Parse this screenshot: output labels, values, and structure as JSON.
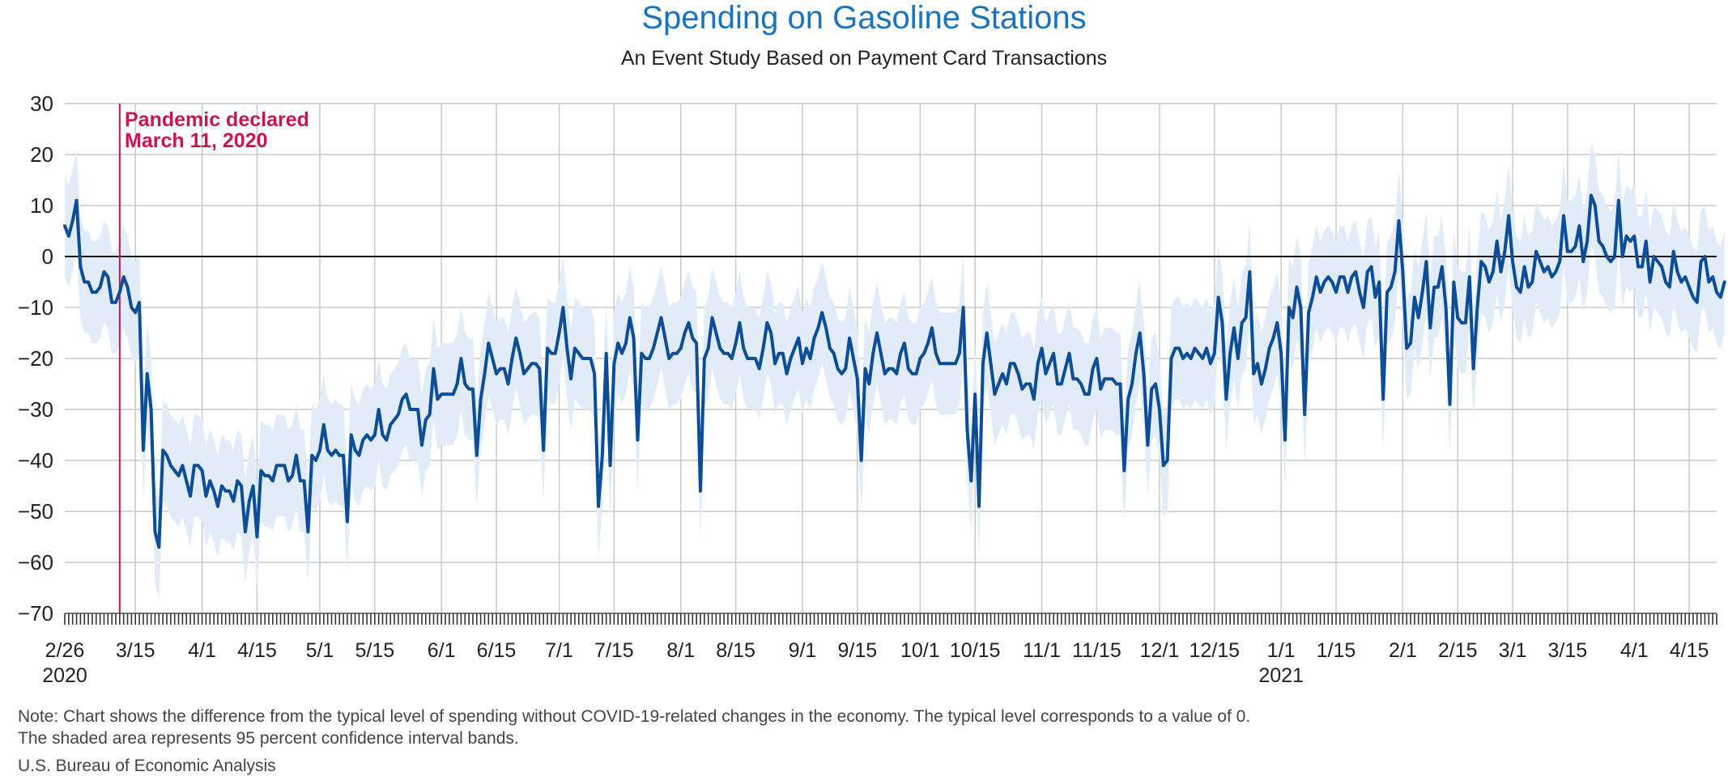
{
  "header": {
    "title": "Spending on Gasoline Stations",
    "subtitle": "An Event Study Based on Payment Card Transactions"
  },
  "annotation": {
    "line1": "Pandemic declared",
    "line2": "March 11, 2020",
    "date": "2020-03-11",
    "color": "#c8174f"
  },
  "footer": {
    "note_line1": "Note: Chart shows the difference from the typical level of spending without COVID-19-related changes in the economy. The typical level corresponds to a value of 0.",
    "note_line2": "The shaded area represents 95 percent confidence interval bands.",
    "source": "U.S. Bureau of Economic Analysis"
  },
  "colors": {
    "line": "#0b4d96",
    "band": "#e2ecf8",
    "grid": "#c9c9c9",
    "title": "#1a74bd"
  },
  "chart_data": {
    "type": "line",
    "title": "Spending on Gasoline Stations",
    "subtitle": "An Event Study Based on Payment Card Transactions",
    "xlabel": "",
    "ylabel": "",
    "ylim": [
      -70,
      30
    ],
    "yticks": [
      30,
      20,
      10,
      0,
      -10,
      -20,
      -30,
      -40,
      -50,
      -60,
      -70
    ],
    "xlim": [
      "2020-02-26",
      "2021-04-22"
    ],
    "xticks": [
      {
        "date": "2020-02-26",
        "label": "2/26",
        "sublabel": "2020"
      },
      {
        "date": "2020-03-15",
        "label": "3/15"
      },
      {
        "date": "2020-04-01",
        "label": "4/1"
      },
      {
        "date": "2020-04-15",
        "label": "4/15"
      },
      {
        "date": "2020-05-01",
        "label": "5/1"
      },
      {
        "date": "2020-05-15",
        "label": "5/15"
      },
      {
        "date": "2020-06-01",
        "label": "6/1"
      },
      {
        "date": "2020-06-15",
        "label": "6/15"
      },
      {
        "date": "2020-07-01",
        "label": "7/1"
      },
      {
        "date": "2020-07-15",
        "label": "7/15"
      },
      {
        "date": "2020-08-01",
        "label": "8/1"
      },
      {
        "date": "2020-08-15",
        "label": "8/15"
      },
      {
        "date": "2020-09-01",
        "label": "9/1"
      },
      {
        "date": "2020-09-15",
        "label": "9/15"
      },
      {
        "date": "2020-10-01",
        "label": "10/1"
      },
      {
        "date": "2020-10-15",
        "label": "10/15"
      },
      {
        "date": "2020-11-01",
        "label": "11/1"
      },
      {
        "date": "2020-11-15",
        "label": "11/15"
      },
      {
        "date": "2020-12-01",
        "label": "12/1"
      },
      {
        "date": "2020-12-15",
        "label": "12/15"
      },
      {
        "date": "2021-01-01",
        "label": "1/1",
        "sublabel": "2021"
      },
      {
        "date": "2021-01-15",
        "label": "1/15"
      },
      {
        "date": "2021-02-01",
        "label": "2/1"
      },
      {
        "date": "2021-02-15",
        "label": "2/15"
      },
      {
        "date": "2021-03-01",
        "label": "3/1"
      },
      {
        "date": "2021-03-15",
        "label": "3/15"
      },
      {
        "date": "2021-04-01",
        "label": "4/1"
      },
      {
        "date": "2021-04-15",
        "label": "4/15"
      }
    ],
    "grid": true,
    "band_halfwidth": 10,
    "series": [
      {
        "name": "",
        "start_date": "2020-02-26",
        "values": [
          6,
          4,
          7,
          11,
          -2,
          -5,
          -5,
          -7,
          -7,
          -6,
          -3,
          -4,
          -9,
          -9,
          -7,
          -4,
          -6,
          -10,
          -11,
          -9,
          -38,
          -23,
          -30,
          -54,
          -57,
          -38,
          -39,
          -41,
          -42,
          -43,
          -41,
          -44,
          -47,
          -41,
          -41,
          -42,
          -47,
          -44,
          -46,
          -49,
          -45,
          -46,
          -46,
          -48,
          -44,
          -45,
          -54,
          -48,
          -45,
          -55,
          -42,
          -43,
          -43,
          -44,
          -41,
          -41,
          -41,
          -44,
          -43,
          -39,
          -44,
          -44,
          -54,
          -39,
          -40,
          -38,
          -33,
          -38,
          -39,
          -38,
          -39,
          -39,
          -52,
          -35,
          -38,
          -39,
          -36,
          -35,
          -36,
          -35,
          -30,
          -35,
          -36,
          -33,
          -32,
          -31,
          -28,
          -27,
          -30,
          -30,
          -30,
          -37,
          -32,
          -31,
          -22,
          -28,
          -27,
          -27,
          -27,
          -27,
          -25,
          -20,
          -25,
          -26,
          -26,
          -39,
          -28,
          -23,
          -17,
          -20,
          -23,
          -22,
          -22,
          -25,
          -20,
          -16,
          -19,
          -23,
          -22,
          -21,
          -21,
          -22,
          -38,
          -18,
          -19,
          -19,
          -15,
          -10,
          -18,
          -24,
          -18,
          -19,
          -20,
          -20,
          -20,
          -23,
          -49,
          -39,
          -19,
          -41,
          -21,
          -17,
          -19,
          -17,
          -12,
          -16,
          -36,
          -19,
          -20,
          -20,
          -18,
          -15,
          -12,
          -16,
          -20,
          -19,
          -19,
          -18,
          -15,
          -13,
          -16,
          -17,
          -46,
          -20,
          -18,
          -12,
          -15,
          -18,
          -19,
          -19,
          -20,
          -17,
          -13,
          -18,
          -20,
          -20,
          -20,
          -22,
          -18,
          -13,
          -15,
          -21,
          -19,
          -19,
          -23,
          -20,
          -18,
          -16,
          -21,
          -18,
          -20,
          -16,
          -14,
          -11,
          -14,
          -18,
          -19,
          -22,
          -23,
          -22,
          -16,
          -20,
          -24,
          -40,
          -22,
          -25,
          -19,
          -15,
          -19,
          -23,
          -22,
          -22,
          -23,
          -19,
          -17,
          -22,
          -23,
          -23,
          -20,
          -19,
          -17,
          -14,
          -19,
          -21,
          -21,
          -21,
          -21,
          -21,
          -19,
          -10,
          -34,
          -44,
          -27,
          -49,
          -21,
          -15,
          -21,
          -27,
          -25,
          -23,
          -25,
          -21,
          -21,
          -23,
          -26,
          -25,
          -25,
          -28,
          -21,
          -18,
          -23,
          -21,
          -19,
          -25,
          -25,
          -22,
          -19,
          -24,
          -24,
          -25,
          -27,
          -27,
          -22,
          -20,
          -26,
          -24,
          -24,
          -24,
          -25,
          -25,
          -42,
          -28,
          -25,
          -19,
          -15,
          -23,
          -37,
          -26,
          -25,
          -30,
          -41,
          -40,
          -20,
          -18,
          -18,
          -20,
          -19,
          -20,
          -18,
          -19,
          -20,
          -18,
          -21,
          -19,
          -8,
          -13,
          -28,
          -19,
          -14,
          -20,
          -13,
          -12,
          -3,
          -23,
          -21,
          -25,
          -22,
          -18,
          -16,
          -13,
          -19,
          -36,
          -10,
          -12,
          -6,
          -10,
          -31,
          -11,
          -8,
          -4,
          -7,
          -5,
          -4,
          -5,
          -7,
          -4,
          -4,
          -7,
          -4,
          -3,
          -7,
          -10,
          -3,
          -2,
          -8,
          -5,
          -28,
          -7,
          -6,
          -3,
          7,
          -3,
          -18,
          -17,
          -8,
          -12,
          -7,
          -1,
          -14,
          -6,
          -6,
          -2,
          -10,
          -29,
          -5,
          -12,
          -13,
          -13,
          -4,
          -22,
          -10,
          -1,
          -2,
          -5,
          -3,
          3,
          -3,
          1,
          8,
          -1,
          -6,
          -7,
          -2,
          -6,
          -5,
          1,
          -1,
          -3,
          -2,
          -4,
          -3,
          -1,
          8,
          1,
          1,
          2,
          6,
          -1,
          3,
          12,
          10,
          3,
          2,
          0,
          -1,
          0,
          11,
          0,
          4,
          3,
          4,
          -2,
          -2,
          3,
          -5,
          0,
          -1,
          -2,
          -5,
          -6,
          1,
          -3,
          -5,
          -4,
          -6,
          -8,
          -9,
          -1,
          0,
          -5,
          -4,
          -7,
          -8,
          -5
        ]
      }
    ]
  }
}
